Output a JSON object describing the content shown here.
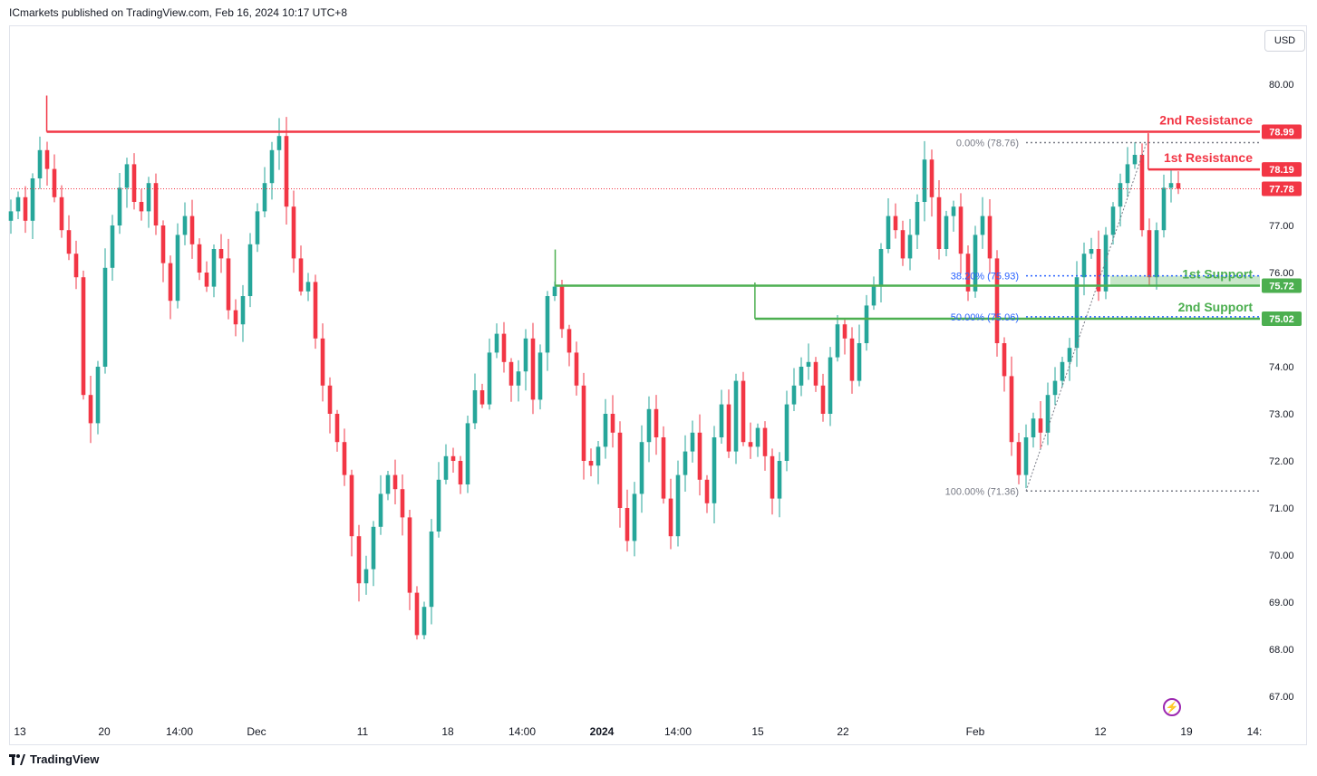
{
  "header": {
    "published": "ICmarkets published on TradingView.com, Feb 16, 2024 10:17 UTC+8"
  },
  "currency_button": "USD",
  "branding": {
    "logo_text": "TradingView",
    "logo_icon": "tradingview-logo-icon"
  },
  "colors": {
    "up": "#26a69a",
    "down": "#f23645",
    "resistance": "#f23645",
    "support": "#4caf50",
    "fib": "#787b86",
    "fib_blue": "#2962ff"
  },
  "chart_data": {
    "type": "candlestick",
    "title": "",
    "ylim": [
      66.6,
      80.8
    ],
    "y_ticks": [
      {
        "value": 80.0,
        "label": "80.00"
      },
      {
        "value": 77.0,
        "label": "77.00"
      },
      {
        "value": 76.0,
        "label": "76.00"
      },
      {
        "value": 74.0,
        "label": "74.00"
      },
      {
        "value": 73.0,
        "label": "73.00"
      },
      {
        "value": 72.0,
        "label": "72.00"
      },
      {
        "value": 71.0,
        "label": "71.00"
      },
      {
        "value": 70.0,
        "label": "70.00"
      },
      {
        "value": 69.0,
        "label": "69.00"
      },
      {
        "value": 68.0,
        "label": "68.00"
      },
      {
        "value": 67.0,
        "label": "67.00"
      }
    ],
    "x_ticks": [
      {
        "label": "13",
        "bold": false
      },
      {
        "label": "20",
        "bold": false
      },
      {
        "label": "14:00",
        "bold": false
      },
      {
        "label": "Dec",
        "bold": false
      },
      {
        "label": "11",
        "bold": false
      },
      {
        "label": "18",
        "bold": false
      },
      {
        "label": "14:00",
        "bold": false
      },
      {
        "label": "2024",
        "bold": true
      },
      {
        "label": "14:00",
        "bold": false
      },
      {
        "label": "15",
        "bold": false
      },
      {
        "label": "22",
        "bold": false
      },
      {
        "label": "Feb",
        "bold": false
      },
      {
        "label": "12",
        "bold": false
      },
      {
        "label": "19",
        "bold": false
      },
      {
        "label": "14:",
        "bold": false
      }
    ],
    "close_path": [
      77.3,
      77.6,
      77.1,
      78.0,
      78.6,
      78.2,
      77.6,
      76.9,
      76.4,
      75.9,
      73.4,
      72.8,
      74.0,
      76.1,
      77.0,
      77.8,
      78.3,
      77.5,
      77.3,
      77.9,
      77.0,
      76.2,
      75.4,
      76.8,
      77.2,
      76.6,
      76.0,
      75.7,
      76.5,
      76.3,
      75.2,
      74.9,
      75.5,
      76.6,
      77.3,
      77.9,
      78.6,
      78.9,
      77.4,
      76.3,
      75.6,
      75.8,
      74.6,
      73.6,
      73.0,
      72.4,
      71.7,
      70.4,
      69.4,
      69.7,
      70.6,
      71.3,
      71.7,
      71.4,
      70.8,
      69.2,
      68.3,
      68.9,
      70.5,
      71.6,
      72.1,
      72.0,
      71.5,
      72.8,
      73.5,
      73.2,
      74.3,
      74.7,
      74.1,
      73.6,
      73.9,
      74.6,
      73.3,
      74.3,
      75.5,
      75.7,
      74.8,
      74.3,
      73.6,
      72.0,
      71.9,
      72.3,
      73.0,
      72.6,
      71.0,
      70.3,
      71.3,
      72.4,
      73.1,
      72.5,
      71.2,
      70.4,
      71.7,
      72.2,
      72.6,
      71.6,
      71.1,
      72.5,
      73.2,
      72.2,
      73.7,
      72.4,
      72.3,
      72.7,
      72.1,
      71.2,
      72.0,
      73.2,
      73.6,
      74.0,
      74.1,
      73.6,
      73.0,
      74.2,
      74.9,
      74.6,
      73.7,
      74.5,
      75.3,
      75.7,
      76.5,
      77.2,
      76.9,
      76.3,
      76.8,
      77.5,
      78.4,
      77.6,
      76.5,
      77.2,
      77.4,
      76.4,
      75.6,
      76.8,
      77.2,
      76.3,
      74.5,
      73.8,
      72.4,
      71.7,
      72.5,
      72.9,
      72.6,
      73.4,
      73.7,
      74.1,
      74.4,
      75.9,
      76.4,
      76.5,
      75.6,
      76.8,
      77.4,
      77.9,
      78.3,
      78.5,
      76.9,
      75.9,
      76.9,
      77.8,
      77.9,
      77.78
    ],
    "series": [
      {
        "name": "",
        "last_value": 77.78,
        "last_label": "77.78"
      }
    ],
    "horizontal_levels": [
      {
        "name": "2nd Resistance",
        "value": 78.99,
        "label": "78.99",
        "color": "#f23645",
        "x_start_frac": 0.0287
      },
      {
        "name": "1st Resistance",
        "value": 78.19,
        "label": "78.19",
        "color": "#f23645",
        "x_start_frac": 0.9106
      },
      {
        "name": "1st Support",
        "value": 75.72,
        "label": "75.72",
        "color": "#4caf50",
        "x_start_frac": 0.4358
      },
      {
        "name": "2nd Support",
        "value": 75.02,
        "label": "75.02",
        "color": "#4caf50",
        "x_start_frac": 0.5957
      }
    ],
    "support_zone": {
      "from": 75.72,
      "to": 75.93
    },
    "fibonacci": [
      {
        "label": "0.00% (78.76)",
        "value": 78.76
      },
      {
        "label": "38.20% (75.93)",
        "value": 75.93
      },
      {
        "label": "50.00% (75.06)",
        "value": 75.06
      },
      {
        "label": "100.00% (71.36)",
        "value": 71.36
      }
    ],
    "grid": false,
    "legend": "none"
  }
}
